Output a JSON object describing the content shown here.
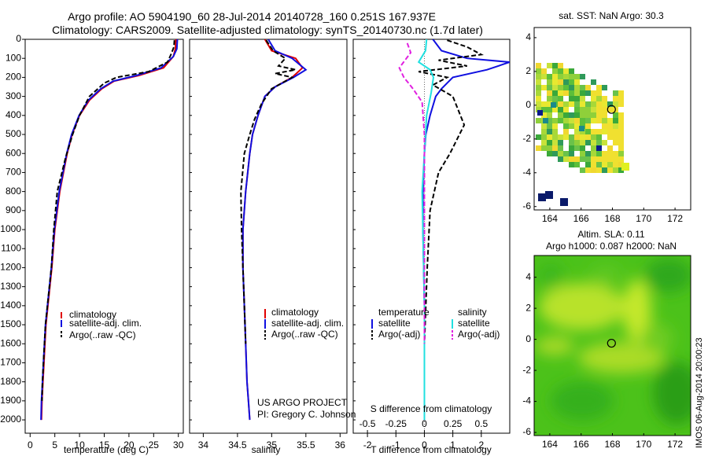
{
  "header": {
    "title_line1": "Argo profile: AO 5904190_60 28-Jul-2014 20140728_160 0.251S 167.937E",
    "title_line2": "Climatology: CARS2009. Satellite-adjusted climatology: synTS_20140730.nc (1.7d later)"
  },
  "depth_axis": {
    "ticks": [
      0,
      100,
      200,
      300,
      400,
      500,
      600,
      700,
      800,
      900,
      1000,
      1100,
      1200,
      1300,
      1400,
      1500,
      1600,
      1700,
      1800,
      1900,
      2000
    ],
    "ylim": [
      0,
      2070
    ]
  },
  "colors": {
    "climatology": "#e00000",
    "satellite": "#1010e0",
    "argo": "#000000",
    "sat_salinity": "#20e0e0",
    "argo_salinity": "#e020e0"
  },
  "chart_data": [
    {
      "type": "line",
      "name": "temperature-profile",
      "xlabel": "temperature (deg C)",
      "ylabel": "",
      "xlim": [
        -1,
        31
      ],
      "xticks": [
        0,
        5,
        10,
        15,
        20,
        25,
        30
      ],
      "ylim": [
        0,
        2070
      ],
      "legend": [
        "climatology",
        "satellite-adj. clim.",
        "Argo(..raw -QC)"
      ],
      "series": [
        {
          "name": "climatology",
          "x": [
            29.5,
            29.4,
            29.0,
            27.0,
            22.0,
            17.0,
            14.5,
            12.0,
            10.0,
            8.5,
            7.5,
            6.0,
            5.0,
            4.4,
            3.6,
            3.2,
            3.0,
            2.8,
            2.6,
            2.4,
            2.3
          ],
          "y": [
            0,
            50,
            90,
            150,
            190,
            220,
            260,
            320,
            400,
            500,
            600,
            800,
            1000,
            1200,
            1400,
            1500,
            1600,
            1700,
            1800,
            1900,
            2000
          ]
        },
        {
          "name": "satellite-adj. clim.",
          "x": [
            29.8,
            29.7,
            29.0,
            26.5,
            21.5,
            16.8,
            14.3,
            11.8,
            9.9,
            8.4,
            7.4,
            5.9,
            4.9,
            4.3,
            3.5,
            3.1,
            2.9,
            2.7,
            2.5,
            2.3,
            2.2
          ],
          "y": [
            0,
            50,
            90,
            150,
            190,
            220,
            260,
            320,
            400,
            500,
            600,
            800,
            1000,
            1200,
            1400,
            1500,
            1600,
            1700,
            1800,
            1900,
            2000
          ]
        },
        {
          "name": "Argo(..raw -QC)",
          "x": [
            29.2,
            29.1,
            28.5,
            27.8,
            24.0,
            17.5,
            15.0,
            12.0,
            10.0,
            8.6,
            7.2,
            5.5,
            4.8,
            4.3,
            3.5,
            3.1,
            2.9,
            2.7,
            2.5,
            2.4
          ],
          "y": [
            5,
            40,
            80,
            120,
            170,
            200,
            230,
            300,
            400,
            500,
            620,
            800,
            1000,
            1200,
            1400,
            1500,
            1600,
            1700,
            1800,
            1900
          ]
        }
      ]
    },
    {
      "type": "line",
      "name": "salinity-profile",
      "xlabel": "salinity",
      "ylabel": "",
      "xlim": [
        33.8,
        36.1
      ],
      "xticks": [
        34,
        34.5,
        35,
        35.5,
        36
      ],
      "ylim": [
        0,
        2070
      ],
      "legend": [
        "climatology",
        "satellite-adj. clim.",
        "Argo(..raw -QC)"
      ],
      "annotation": [
        "US ARGO PROJECT",
        "PI: Gregory C. Johnson"
      ],
      "series": [
        {
          "name": "climatology",
          "x": [
            34.9,
            35.0,
            35.35,
            35.45,
            35.3,
            35.05,
            34.9,
            34.8,
            34.72,
            34.68,
            34.62,
            34.58,
            34.58,
            34.6,
            34.62,
            34.64,
            34.66,
            34.68
          ],
          "y": [
            0,
            60,
            100,
            150,
            200,
            250,
            300,
            400,
            500,
            600,
            800,
            1000,
            1200,
            1400,
            1600,
            1800,
            1900,
            2000
          ]
        },
        {
          "name": "satellite-adj. clim.",
          "x": [
            34.95,
            35.05,
            35.3,
            35.5,
            35.32,
            35.05,
            34.9,
            34.8,
            34.72,
            34.68,
            34.62,
            34.58,
            34.58,
            34.6,
            34.62,
            34.64,
            34.66,
            34.68
          ],
          "y": [
            0,
            60,
            100,
            160,
            200,
            250,
            300,
            400,
            500,
            600,
            800,
            1000,
            1200,
            1400,
            1600,
            1800,
            1900,
            2000
          ]
        },
        {
          "name": "Argo(..raw -QC)",
          "x": [
            34.92,
            35.02,
            35.2,
            35.1,
            35.35,
            35.05,
            35.3,
            35.0,
            34.85,
            34.75,
            34.68,
            34.6,
            34.55,
            34.56,
            34.58,
            34.6,
            34.62
          ],
          "y": [
            5,
            60,
            100,
            140,
            160,
            180,
            200,
            260,
            340,
            420,
            500,
            600,
            800,
            1000,
            1200,
            1400,
            1600
          ]
        }
      ]
    },
    {
      "type": "line",
      "name": "difference-profile",
      "xlabel": "T difference from climatology",
      "x2label": "S difference from climatology",
      "xlim": [
        -2.5,
        3
      ],
      "xticks": [
        -2,
        -1,
        0,
        1,
        2
      ],
      "x2lim": [
        -0.625,
        0.75
      ],
      "x2ticks": [
        -0.5,
        -0.25,
        0,
        0.25,
        0.5
      ],
      "x2ticklabels": [
        "-0.5",
        "-0.25",
        "0",
        "0.25",
        "0.5"
      ],
      "ylim": [
        0,
        2070
      ],
      "legend": {
        "temperature_header": "temperature",
        "salinity_header": "salinity",
        "items": [
          "satellite",
          "Argo(-adj)",
          "satellite",
          "Argo(-adj)"
        ]
      },
      "series": [
        {
          "name": "T satellite",
          "x": [
            0.3,
            0.6,
            1.5,
            3.0,
            2.2,
            1.0,
            0.6,
            0.4,
            0.2,
            0.05,
            0.0,
            -0.05,
            -0.05,
            0.0,
            0.0,
            0.0
          ],
          "y": [
            0,
            60,
            100,
            120,
            160,
            200,
            260,
            300,
            400,
            500,
            600,
            800,
            1000,
            1400,
            1800,
            2000
          ]
        },
        {
          "name": "T Argo(-adj)",
          "x": [
            0.8,
            1.5,
            2.0,
            0.5,
            1.5,
            -0.2,
            0.8,
            0.3,
            1.0,
            1.4,
            0.9,
            0.5,
            0.2,
            0.1,
            0.0,
            0.0
          ],
          "y": [
            5,
            40,
            80,
            110,
            140,
            170,
            200,
            240,
            300,
            450,
            600,
            700,
            900,
            1200,
            1600,
            1900
          ]
        },
        {
          "name": "S satellite",
          "x": [
            0.02,
            0.01,
            -0.05,
            0.05,
            0.08,
            0.06,
            0.02,
            0.0,
            -0.02,
            0.0,
            0.0
          ],
          "y": [
            0,
            60,
            120,
            160,
            200,
            280,
            400,
            600,
            800,
            1400,
            2000
          ]
        },
        {
          "name": "S Argo(-adj)",
          "x": [
            -0.15,
            -0.12,
            -0.22,
            -0.18,
            -0.1,
            -0.02,
            0.0,
            0.0
          ],
          "y": [
            20,
            70,
            150,
            200,
            260,
            330,
            500,
            1600
          ]
        }
      ]
    },
    {
      "type": "heatmap",
      "name": "sst-map",
      "title": "sat. SST: NaN Argo: 30.3",
      "xlim": [
        163,
        173
      ],
      "ylim": [
        -6.2,
        4.6
      ],
      "xticks": [
        164,
        166,
        168,
        170,
        172
      ],
      "yticks": [
        4,
        2,
        0,
        -2,
        -4,
        -6
      ],
      "argo_position": [
        167.94,
        -0.25
      ]
    },
    {
      "type": "heatmap",
      "name": "sla-map",
      "title_line1": "Altim. SLA: 0.11",
      "title_line2": "Argo h1000: 0.087 h2000: NaN",
      "xlim": [
        163,
        173
      ],
      "ylim": [
        -6.2,
        5.4
      ],
      "xticks": [
        164,
        166,
        168,
        170,
        172
      ],
      "yticks": [
        4,
        2,
        0,
        -2,
        -4,
        -6
      ],
      "argo_position": [
        167.94,
        -0.25
      ]
    }
  ],
  "footer": {
    "vertical_stamp": "IMOS 06-Aug-2014 20:00:23"
  }
}
